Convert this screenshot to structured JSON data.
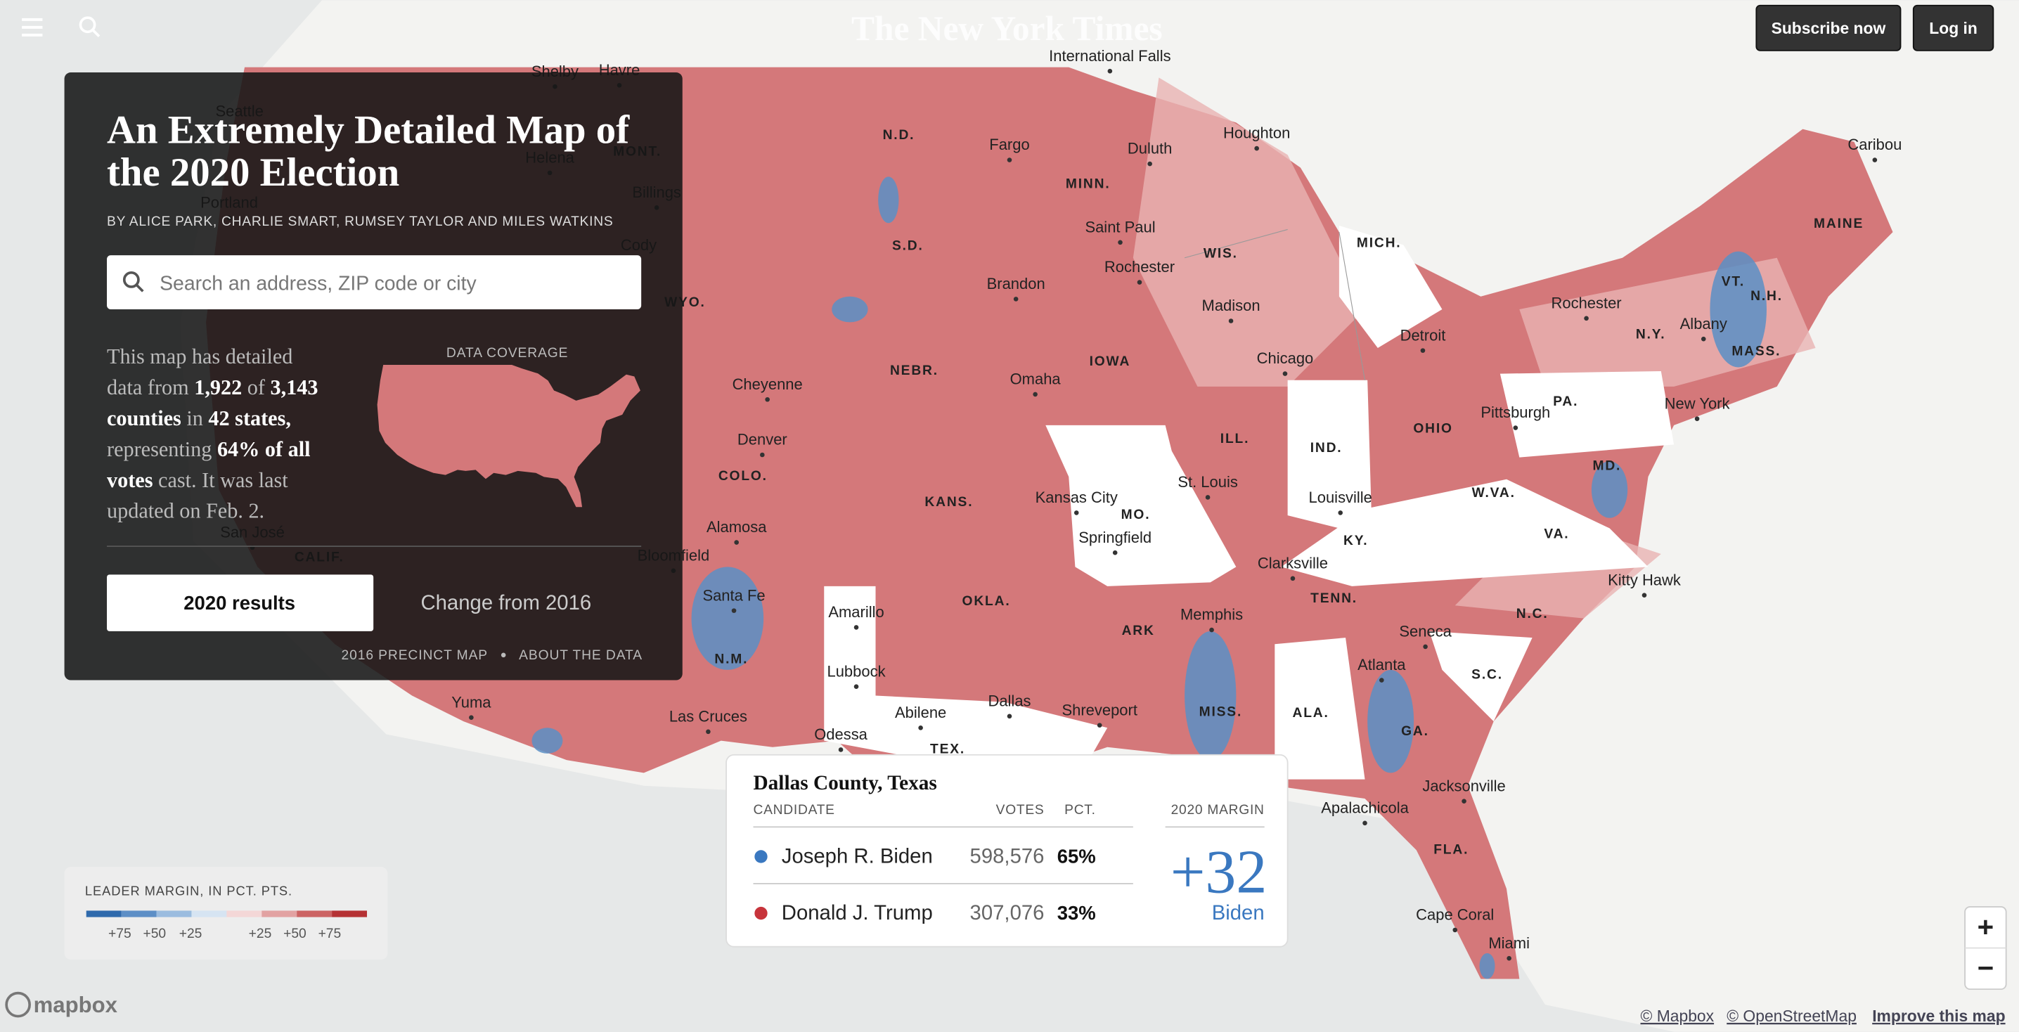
{
  "header": {
    "logo": "The New York Times",
    "subscribe": "Subscribe now",
    "login": "Log in"
  },
  "panel": {
    "title_lines": [
      "An Extremely Detailed Map of",
      "the 2020 Election"
    ],
    "byline": "BY ALICE PARK, CHARLIE SMART, RUMSEY TAYLOR AND MILES WATKINS",
    "search_placeholder": "Search an address, ZIP code or city",
    "coverage": [
      [
        {
          "text": "This map has detailed"
        }
      ],
      [
        {
          "text": "data from "
        },
        {
          "text": "1,922",
          "bold": true
        },
        {
          "text": " of "
        },
        {
          "text": "3,143",
          "bold": true
        }
      ],
      [
        {
          "text": "counties",
          "bold": true
        },
        {
          "text": " in "
        },
        {
          "text": "42 states,",
          "bold": true
        }
      ],
      [
        {
          "text": "representing "
        },
        {
          "text": "64% of all",
          "bold": true
        }
      ],
      [
        {
          "text": "votes",
          "bold": true
        },
        {
          "text": " cast. It was last"
        }
      ],
      [
        {
          "text": "updated on Feb. 2."
        }
      ]
    ],
    "coverage_label": "DATA COVERAGE",
    "tabs": [
      "2020 results",
      "Change from 2016"
    ],
    "links": [
      "2016 PRECINCT MAP",
      "ABOUT THE DATA"
    ]
  },
  "legend": {
    "title": "LEADER MARGIN, IN PCT. PTS.",
    "colors": [
      "#2f6aac",
      "#5d8fc6",
      "#9bbcdf",
      "#d6e4f2",
      "#f4d7d7",
      "#e2a2a2",
      "#cc6464",
      "#b53234"
    ],
    "labels": [
      "+75",
      "+50",
      "+25",
      "+25",
      "+50",
      "+75"
    ]
  },
  "tooltip": {
    "title": "Dallas County, Texas",
    "headers": [
      "CANDIDATE",
      "VOTES",
      "PCT.",
      "2020 MARGIN"
    ],
    "rows": [
      {
        "name": "Joseph R. Biden",
        "votes": "598,576",
        "pct": "65%",
        "color": "#3a78c0"
      },
      {
        "name": "Donald J. Trump",
        "votes": "307,076",
        "pct": "33%",
        "color": "#c7343b"
      }
    ],
    "margin": "+32",
    "leader": "Biden"
  },
  "map": {
    "cities": [
      "International Falls",
      "Houghton",
      "Caribou",
      "Fargo",
      "Duluth",
      "Saint Paul",
      "Rochester",
      "Brandon",
      "Madison",
      "Rochester",
      "Albany",
      "Detroit",
      "Chicago",
      "Omaha",
      "Cheyenne",
      "Pittsburgh",
      "New York",
      "Denver",
      "St. Louis",
      "Kansas City",
      "Louisville",
      "Springfield",
      "Alamosa",
      "Bloomfield",
      "Clarksville",
      "Kitty Hawk",
      "Santa Fe",
      "Amarillo",
      "Memphis",
      "Seneca",
      "Lubbock",
      "Atlanta",
      "Dallas",
      "Shreveport",
      "Abilene",
      "Las Cruces",
      "Odessa",
      "Jacksonville",
      "Apalachicola",
      "Cape Coral",
      "Miami",
      "Yuma",
      "Shelby",
      "Havre",
      "Billings",
      "Cody",
      "Helena",
      "Portland",
      "Seattle",
      "San José"
    ],
    "states": [
      "N.D.",
      "MONT.",
      "MINN.",
      "MICH.",
      "MAINE",
      "S.D.",
      "WIS.",
      "VT.",
      "N.H.",
      "N.Y.",
      "IOWA",
      "MASS.",
      "NEBR.",
      "WYO.",
      "PA.",
      "OHIO",
      "ILL.",
      "IND.",
      "COLO.",
      "MD.",
      "KANS.",
      "W.VA.",
      "MO.",
      "VA.",
      "KY.",
      "TENN.",
      "OKLA.",
      "N.C.",
      "ARK",
      "S.C.",
      "N.M.",
      "ALA.",
      "MISS.",
      "GA.",
      "TEX.",
      "FLA.",
      "CALIF."
    ]
  },
  "zoom": [
    "+",
    "−"
  ],
  "attribution": {
    "logo": "mapbox",
    "links": [
      "© Mapbox",
      "© OpenStreetMap",
      "Improve this map"
    ]
  }
}
